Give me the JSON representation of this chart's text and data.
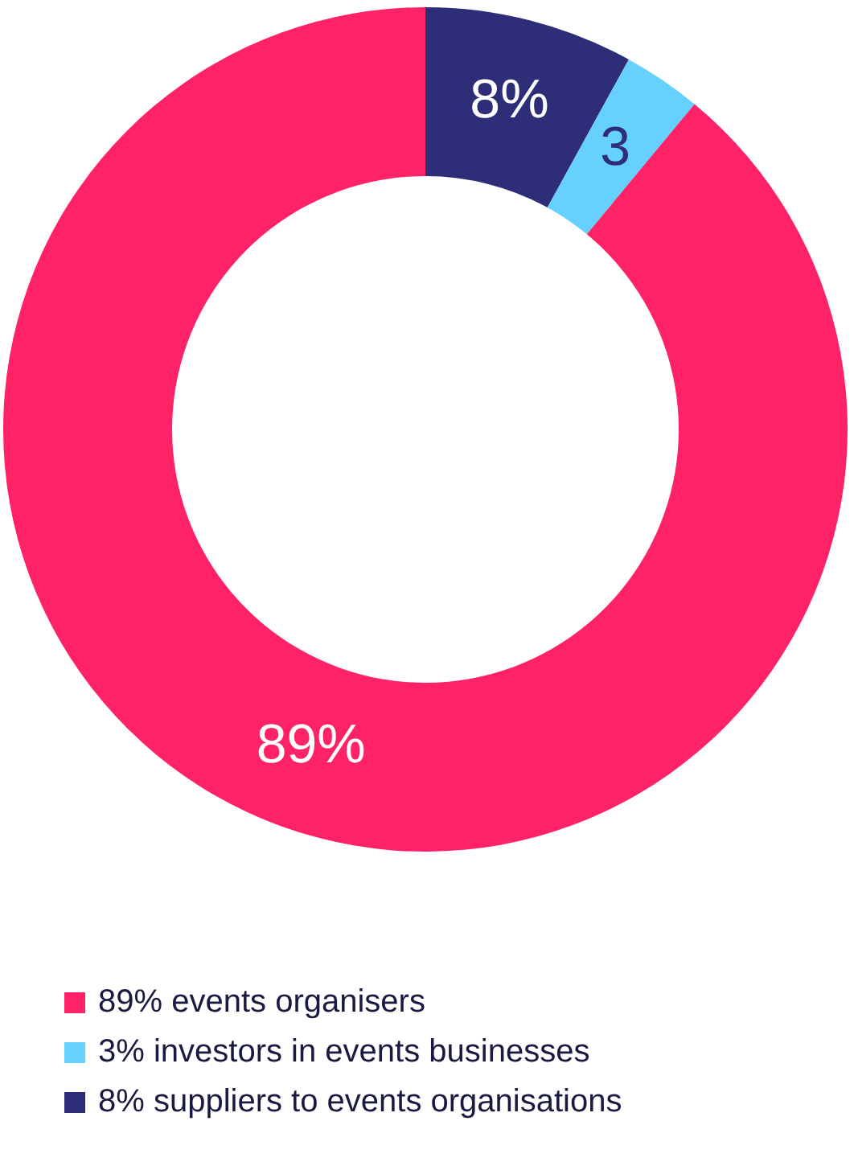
{
  "chart_data": {
    "type": "donut",
    "categories": [
      "8% suppliers to events organisations",
      "3% investors in events businesses",
      "89% events organisers"
    ],
    "values": [
      8,
      3,
      89
    ],
    "colors": [
      "#2e2e78",
      "#66d0ff",
      "#ff2266"
    ],
    "value_labels": [
      "8%",
      "3",
      "89%"
    ],
    "legend": "bottom left"
  }
}
